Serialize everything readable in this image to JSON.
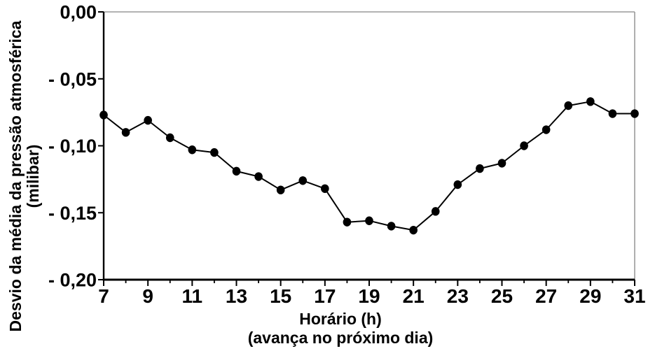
{
  "chart_data": {
    "type": "line",
    "title": "",
    "xlabel_line1": "Horário (h)",
    "xlabel_line2": "(avança no próximo dia)",
    "ylabel_line1": "Desvio da média da pressão atmosférica",
    "ylabel_line2": "(milibar)",
    "xlim": [
      7,
      31
    ],
    "ylim": [
      -0.2,
      0.0
    ],
    "grid": false,
    "legend": "none",
    "x": [
      7,
      8,
      9,
      10,
      11,
      12,
      13,
      14,
      15,
      16,
      17,
      18,
      19,
      20,
      21,
      22,
      23,
      24,
      25,
      26,
      27,
      28,
      29,
      30,
      31
    ],
    "values": [
      -0.077,
      -0.09,
      -0.081,
      -0.094,
      -0.103,
      -0.105,
      -0.119,
      -0.123,
      -0.133,
      -0.126,
      -0.132,
      -0.157,
      -0.156,
      -0.16,
      -0.163,
      -0.149,
      -0.129,
      -0.117,
      -0.113,
      -0.1,
      -0.088,
      -0.07,
      -0.067,
      -0.076,
      -0.076
    ],
    "x_major_ticks": [
      7,
      9,
      11,
      13,
      15,
      17,
      19,
      21,
      23,
      25,
      27,
      29,
      31
    ],
    "x_major_tick_labels": [
      "7",
      "9",
      "11",
      "13",
      "15",
      "17",
      "19",
      "21",
      "23",
      "25",
      "27",
      "29",
      "31"
    ],
    "x_minor_ticks": [
      8,
      10,
      12,
      14,
      16,
      18,
      20,
      22,
      24,
      26,
      28,
      30
    ],
    "y_ticks": [
      0.0,
      -0.05,
      -0.1,
      -0.15,
      -0.2
    ],
    "y_tick_labels": [
      "0,00",
      "- 0,05",
      "- 0,10",
      "- 0,15",
      "- 0,20"
    ],
    "colors": {
      "line": "#000000",
      "marker": "#000000",
      "axis": "#000000",
      "frame_gray": "#999999",
      "text": "#000000",
      "background": "#ffffff"
    }
  }
}
